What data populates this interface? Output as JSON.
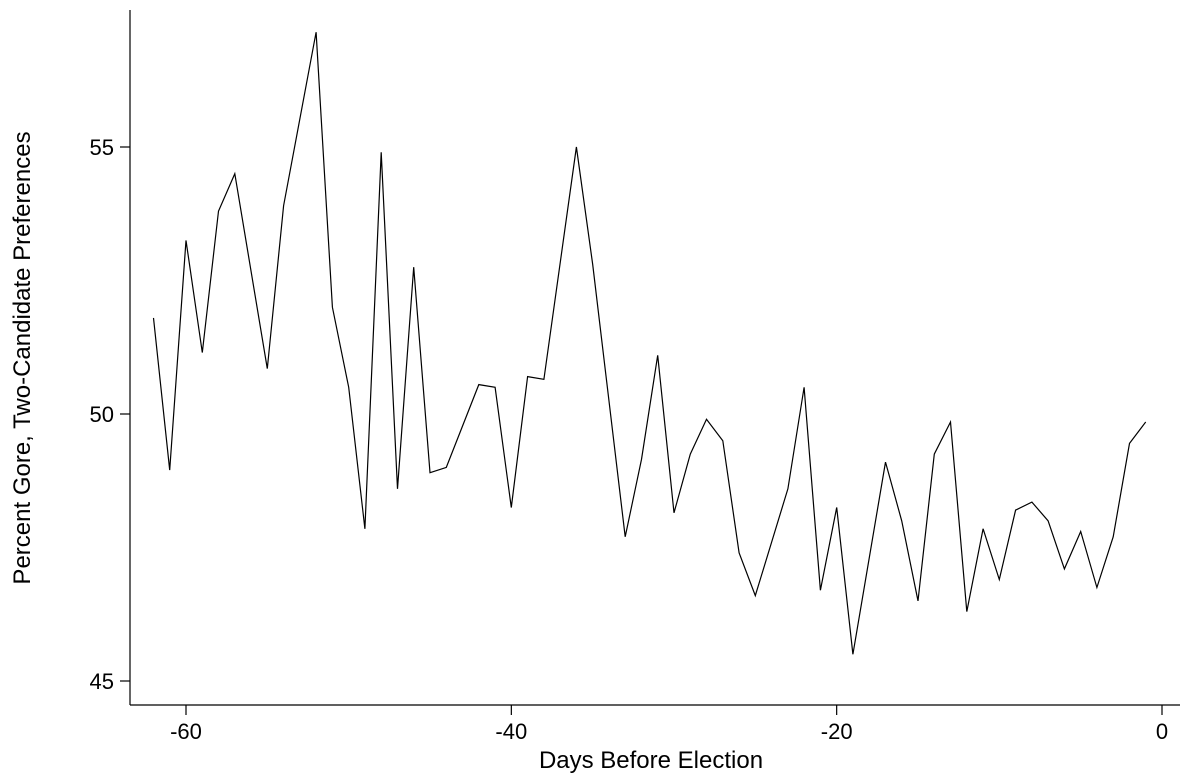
{
  "chart_data": {
    "type": "line",
    "title": "",
    "xlabel": "Days Before Election",
    "ylabel": "Percent Gore, Two-Candidate Preferences",
    "xlim": [
      -63.5,
      0.5
    ],
    "ylim": [
      44.5,
      57.7
    ],
    "x_ticks": [
      -60,
      -40,
      -20,
      0
    ],
    "x_tick_labels": [
      "-60",
      "-40",
      "-20",
      "0"
    ],
    "y_ticks": [
      45,
      50,
      55
    ],
    "y_tick_labels": [
      "45",
      "50",
      "55"
    ],
    "grid": false,
    "legend": "none",
    "series": [
      {
        "color": "#000000",
        "x": [
          -62,
          -61,
          -60,
          -59,
          -58,
          -57,
          -55,
          -54,
          -52,
          -51,
          -50,
          -49,
          -48,
          -47,
          -46,
          -45,
          -44,
          -42,
          -41,
          -40,
          -39,
          -38,
          -36,
          -35,
          -33,
          -32,
          -31,
          -30,
          -29,
          -28,
          -27,
          -26,
          -25,
          -23,
          -22,
          -21,
          -20,
          -19,
          -17,
          -16,
          -15,
          -14,
          -13,
          -12,
          -11,
          -10,
          -9,
          -8,
          -7,
          -6,
          -5,
          -4,
          -3,
          -2,
          -1
        ],
        "y": [
          51.8,
          48.95,
          53.25,
          51.15,
          53.8,
          54.5,
          50.85,
          53.9,
          57.15,
          52.0,
          50.5,
          47.85,
          54.9,
          48.6,
          52.75,
          48.9,
          49.0,
          50.55,
          50.5,
          48.25,
          50.7,
          50.65,
          55.0,
          52.8,
          47.7,
          49.15,
          51.1,
          48.15,
          49.25,
          49.9,
          49.5,
          47.4,
          46.6,
          48.6,
          50.5,
          46.7,
          48.25,
          45.5,
          49.1,
          48.0,
          46.5,
          49.25,
          49.85,
          46.3,
          47.85,
          46.9,
          48.2,
          48.35,
          48.0,
          47.1,
          47.8,
          46.75,
          47.7,
          49.45,
          49.85
        ]
      }
    ]
  }
}
